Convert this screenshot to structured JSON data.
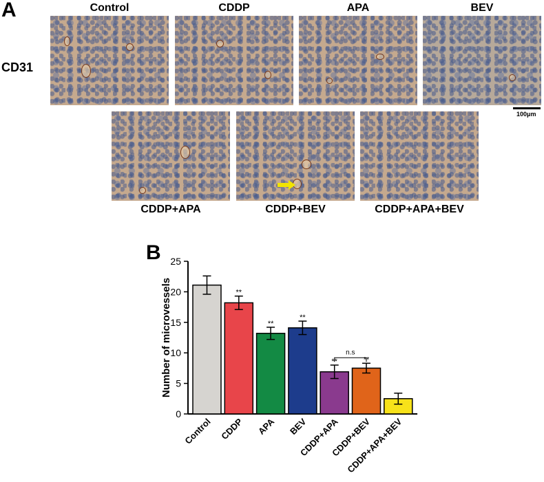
{
  "panel_a": {
    "letter": "A",
    "row_label": "CD31",
    "scale_bar_label": "100μm",
    "top_row": [
      "Control",
      "CDDP",
      "APA",
      "BEV"
    ],
    "bottom_row": [
      "CDDP+APA",
      "CDDP+BEV",
      "CDDP+APA+BEV"
    ],
    "arrow_color": "#f2e400"
  },
  "panel_b": {
    "letter": "B",
    "bracket_label": "n.s"
  },
  "chart_data": {
    "type": "bar",
    "title": "",
    "xlabel": "",
    "ylabel": "Number of microvessels",
    "ylim": [
      0,
      25
    ],
    "yticks": [
      0,
      5,
      10,
      15,
      20,
      25
    ],
    "categories": [
      "Control",
      "CDDP",
      "APA",
      "BEV",
      "CDDP+APA",
      "CDDP+BEV",
      "CDDP+APA+BEV"
    ],
    "values": [
      21.1,
      18.2,
      13.2,
      14.1,
      6.9,
      7.5,
      2.5
    ],
    "errors": [
      1.5,
      1.1,
      1.0,
      1.1,
      1.1,
      0.8,
      0.9
    ],
    "significance": [
      "",
      "**",
      "**",
      "**",
      "**",
      "**",
      ""
    ],
    "colors": [
      "#d6d4d0",
      "#e8454a",
      "#138a44",
      "#1d3c8c",
      "#8a3a8e",
      "#e0641a",
      "#f7e21a"
    ],
    "grid": false,
    "legend": "none"
  }
}
